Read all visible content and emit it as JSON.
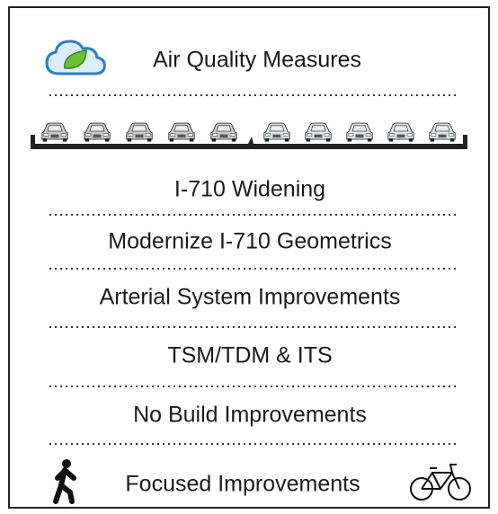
{
  "header": {
    "title": "Air Quality Measures"
  },
  "items": [
    "I-710 Widening",
    "Modernize I-710 Geometrics",
    "Arterial System Improvements",
    "TSM/TDM & ITS",
    "No Build Improvements"
  ],
  "footer": {
    "label": "Focused Improvements"
  }
}
